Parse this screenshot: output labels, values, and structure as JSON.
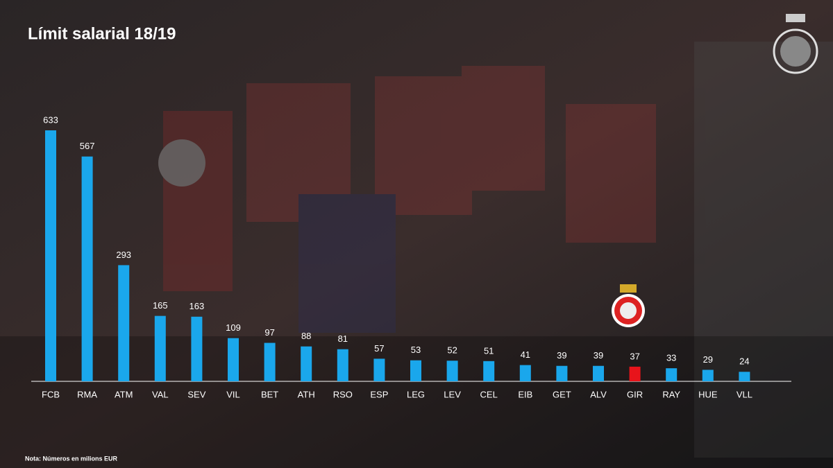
{
  "chart_data": {
    "type": "bar",
    "title": "Límit salarial 18/19",
    "note": "Nota: Números en milions EUR",
    "categories": [
      "FCB",
      "RMA",
      "ATM",
      "VAL",
      "SEV",
      "VIL",
      "BET",
      "ATH",
      "RSO",
      "ESP",
      "LEG",
      "LEV",
      "CEL",
      "EIB",
      "GET",
      "ALV",
      "GIR",
      "RAY",
      "HUE",
      "VLL"
    ],
    "values": [
      633,
      567,
      293,
      165,
      163,
      109,
      97,
      88,
      81,
      57,
      53,
      52,
      51,
      41,
      39,
      39,
      37,
      33,
      29,
      24
    ],
    "colors": [
      "#1aa7ec",
      "#1aa7ec",
      "#1aa7ec",
      "#1aa7ec",
      "#1aa7ec",
      "#1aa7ec",
      "#1aa7ec",
      "#1aa7ec",
      "#1aa7ec",
      "#1aa7ec",
      "#1aa7ec",
      "#1aa7ec",
      "#1aa7ec",
      "#1aa7ec",
      "#1aa7ec",
      "#1aa7ec",
      "#e8141b",
      "#1aa7ec",
      "#1aa7ec",
      "#1aa7ec"
    ]
  }
}
